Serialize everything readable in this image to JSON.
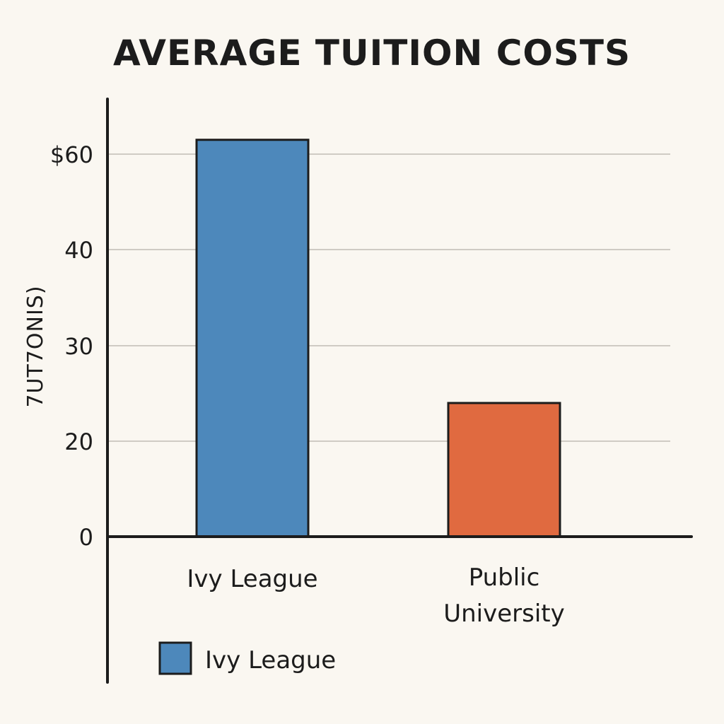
{
  "chart_data": {
    "type": "bar",
    "title": "AVERAGE TUITION COSTS",
    "xlabel": "",
    "ylabel": "7UT7ONIS)",
    "categories": [
      "Ivy League",
      "Public University"
    ],
    "category_lines": [
      [
        "Ivy League"
      ],
      [
        "Public",
        "University"
      ]
    ],
    "values": [
      63,
      24
    ],
    "colors": [
      "#4d88bb",
      "#e06a40"
    ],
    "y_ticks": [
      {
        "value": 0,
        "label": "0"
      },
      {
        "value": 20,
        "label": "20"
      },
      {
        "value": 30,
        "label": "30"
      },
      {
        "value": 40,
        "label": "40"
      },
      {
        "value": 60,
        "label": "$60"
      }
    ],
    "grid": true,
    "legend": {
      "position": "bottom-left",
      "entries": [
        {
          "label": "Ivy League",
          "color": "#4d88bb"
        }
      ]
    }
  }
}
